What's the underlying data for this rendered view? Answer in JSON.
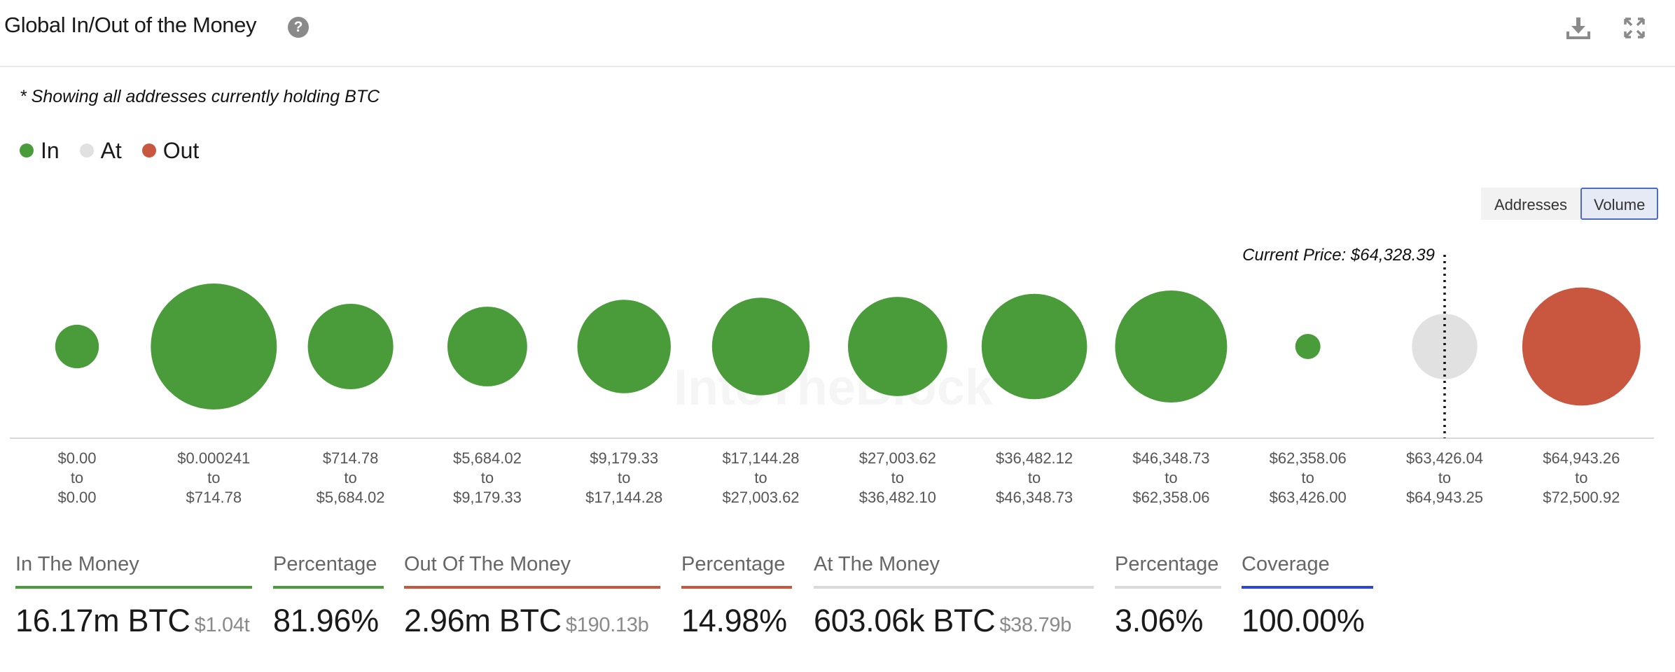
{
  "header": {
    "title": "Global In/Out of the Money",
    "help_icon": "question-circle-icon",
    "download_icon": "download-icon",
    "expand_icon": "expand-icon"
  },
  "note": "* Showing all addresses currently holding BTC",
  "legend": [
    {
      "label": "In",
      "color": "#4a9c3a"
    },
    {
      "label": "At",
      "color": "#e1e1e1"
    },
    {
      "label": "Out",
      "color": "#c9563f"
    }
  ],
  "toggle": {
    "addresses": "Addresses",
    "volume": "Volume",
    "active": "Volume"
  },
  "chart_data": {
    "type": "bubble",
    "title": "Global In/Out of the Money",
    "current_price_label": "Current Price: $64,328.39",
    "current_price": 64328.39,
    "watermark": "IntoTheBlock",
    "size_unit": "relative volume (estimated)",
    "bins": [
      {
        "from": "$0.00",
        "to": "$0.00",
        "status": "In",
        "size": 0.12
      },
      {
        "from": "$0.000241",
        "to": "$714.78",
        "status": "In",
        "size": 1.0
      },
      {
        "from": "$714.78",
        "to": "$5,684.02",
        "status": "In",
        "size": 0.46
      },
      {
        "from": "$5,684.02",
        "to": "$9,179.33",
        "status": "In",
        "size": 0.4
      },
      {
        "from": "$9,179.33",
        "to": "$17,144.28",
        "status": "In",
        "size": 0.55
      },
      {
        "from": "$17,144.28",
        "to": "$27,003.62",
        "status": "In",
        "size": 0.6
      },
      {
        "from": "$27,003.62",
        "to": "$36,482.10",
        "status": "In",
        "size": 0.62
      },
      {
        "from": "$36,482.12",
        "to": "$46,348.73",
        "status": "In",
        "size": 0.7
      },
      {
        "from": "$46,348.73",
        "to": "$62,358.06",
        "status": "In",
        "size": 0.79
      },
      {
        "from": "$62,358.06",
        "to": "$63,426.00",
        "status": "In",
        "size": 0.04
      },
      {
        "from": "$63,426.04",
        "to": "$64,943.25",
        "status": "At",
        "size": 0.27
      },
      {
        "from": "$64,943.26",
        "to": "$72,500.92",
        "status": "Out",
        "size": 0.88
      }
    ],
    "range_connector": "to"
  },
  "stats": [
    {
      "label": "In The Money",
      "value": "16.17m BTC",
      "sub": "$1.04t",
      "color": "#4a9c3a"
    },
    {
      "label": "Percentage",
      "value": "81.96%",
      "sub": "",
      "color": "#4a9c3a"
    },
    {
      "label": "Out Of The Money",
      "value": "2.96m BTC",
      "sub": "$190.13b",
      "color": "#c9563f"
    },
    {
      "label": "Percentage",
      "value": "14.98%",
      "sub": "",
      "color": "#c9563f"
    },
    {
      "label": "At The Money",
      "value": "603.06k BTC",
      "sub": "$38.79b",
      "color": "#dadada"
    },
    {
      "label": "Percentage",
      "value": "3.06%",
      "sub": "",
      "color": "#dadada"
    },
    {
      "label": "Coverage",
      "value": "100.00%",
      "sub": "",
      "color": "#2a46d8"
    }
  ]
}
